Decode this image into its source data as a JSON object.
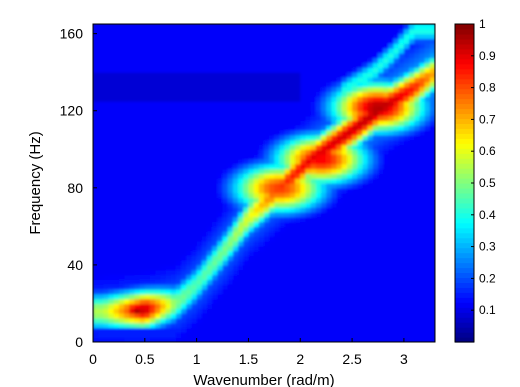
{
  "chart_data": {
    "type": "heatmap",
    "title": "",
    "xlabel": "Wavenumber (rad/m)",
    "ylabel": "Frequency (Hz)",
    "xlim": [
      0,
      3.3
    ],
    "ylim": [
      0,
      165
    ],
    "xticks": [
      0,
      0.5,
      1,
      1.5,
      2,
      2.5,
      3
    ],
    "xtick_labels": [
      "0",
      "0.5",
      "1",
      "1.5",
      "2",
      "2.5",
      "3"
    ],
    "yticks": [
      0,
      40,
      80,
      120,
      160
    ],
    "ytick_labels": [
      "0",
      "40",
      "80",
      "120",
      "160"
    ],
    "colorbar": {
      "range": [
        0,
        1
      ],
      "ticks": [
        0.1,
        0.2,
        0.3,
        0.4,
        0.5,
        0.6,
        0.7,
        0.8,
        0.9,
        1
      ],
      "tick_labels": [
        "0.1",
        "0.2",
        "0.3",
        "0.4",
        "0.5",
        "0.6",
        "0.7",
        "0.8",
        "0.9",
        "1"
      ],
      "colormap": "jet"
    },
    "features": [
      {
        "type": "ridge",
        "points": [
          [
            0.1,
            16
          ],
          [
            0.5,
            17
          ],
          [
            0.8,
            20
          ],
          [
            1.0,
            30
          ],
          [
            1.3,
            50
          ],
          [
            1.5,
            65
          ],
          [
            1.8,
            80
          ],
          [
            2.1,
            95
          ],
          [
            2.5,
            110
          ],
          [
            2.8,
            122
          ],
          [
            3.1,
            132
          ],
          [
            3.3,
            140
          ]
        ],
        "amplitudes": [
          0.55,
          0.95,
          0.5,
          0.45,
          0.5,
          0.6,
          0.82,
          0.9,
          0.92,
          0.95,
          0.85,
          0.7
        ],
        "width_hz": 10
      },
      {
        "type": "blob",
        "x": 0.43,
        "y": 17,
        "value": 0.97
      },
      {
        "type": "blob",
        "x": 2.75,
        "y": 122,
        "value": 0.95
      },
      {
        "type": "blob",
        "x": 2.2,
        "y": 95,
        "value": 0.88
      },
      {
        "type": "blob",
        "x": 1.8,
        "y": 80,
        "value": 0.82
      },
      {
        "type": "branch",
        "points": [
          [
            2.4,
            130
          ],
          [
            2.7,
            140
          ],
          [
            2.9,
            150
          ],
          [
            3.1,
            162
          ]
        ],
        "value": 0.4
      },
      {
        "type": "band",
        "from": [
          0.0,
          25
        ],
        "to": [
          3.3,
          165
        ],
        "value": 0.3
      }
    ],
    "background_value": 0.12
  }
}
